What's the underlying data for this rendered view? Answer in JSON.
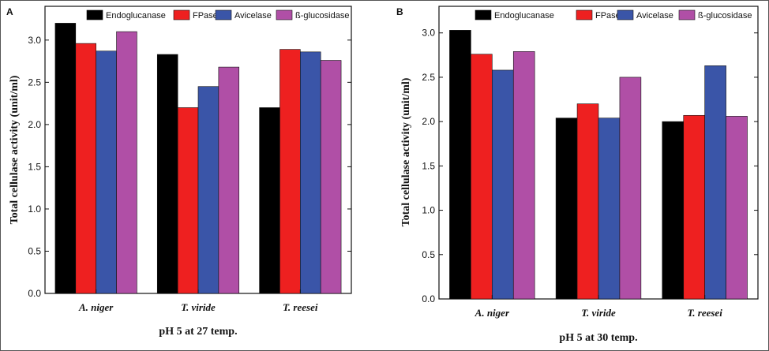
{
  "chart_data": [
    {
      "type": "bar",
      "panel_label": "A",
      "categories": [
        "A. niger",
        "T. viride",
        "T. reesei"
      ],
      "series": [
        {
          "name": "Endoglucanase",
          "color": "#000000",
          "values": [
            3.2,
            2.83,
            2.2
          ]
        },
        {
          "name": "FPase",
          "color": "#ee2020",
          "values": [
            2.96,
            2.2,
            2.89
          ]
        },
        {
          "name": "Avicelase",
          "color": "#3a55a8",
          "values": [
            2.87,
            2.45,
            2.86
          ]
        },
        {
          "name": "ß-glucosidase",
          "color": "#b04fa6",
          "values": [
            3.1,
            2.68,
            2.76
          ]
        }
      ],
      "xlabel": "pH 5 at 27 temp.",
      "ylabel": "Total cellulase activity (unit/ml)",
      "ylim": [
        0,
        3.4
      ],
      "yticks": [
        "0.0",
        "0.5",
        "1.0",
        "1.5",
        "2.0",
        "2.5",
        "3.0"
      ],
      "legend": "top",
      "grid": false
    },
    {
      "type": "bar",
      "panel_label": "B",
      "categories": [
        "A. niger",
        "T. viride",
        "T. reesei"
      ],
      "series": [
        {
          "name": "Endoglucanase",
          "color": "#000000",
          "values": [
            3.03,
            2.04,
            2.0
          ]
        },
        {
          "name": "FPase",
          "color": "#ee2020",
          "values": [
            2.76,
            2.2,
            2.07
          ]
        },
        {
          "name": "Avicelase",
          "color": "#3a55a8",
          "values": [
            2.58,
            2.04,
            2.63
          ]
        },
        {
          "name": "ß-glucosidase",
          "color": "#b04fa6",
          "values": [
            2.79,
            2.5,
            2.06
          ]
        }
      ],
      "xlabel": "pH 5 at 30 temp.",
      "ylabel": "Total cellulase activity (unit/ml)",
      "ylim": [
        0,
        3.3
      ],
      "yticks": [
        "0.0",
        "0.5",
        "1.0",
        "1.5",
        "2.0",
        "2.5",
        "3.0"
      ],
      "legend": "top",
      "grid": false
    }
  ]
}
